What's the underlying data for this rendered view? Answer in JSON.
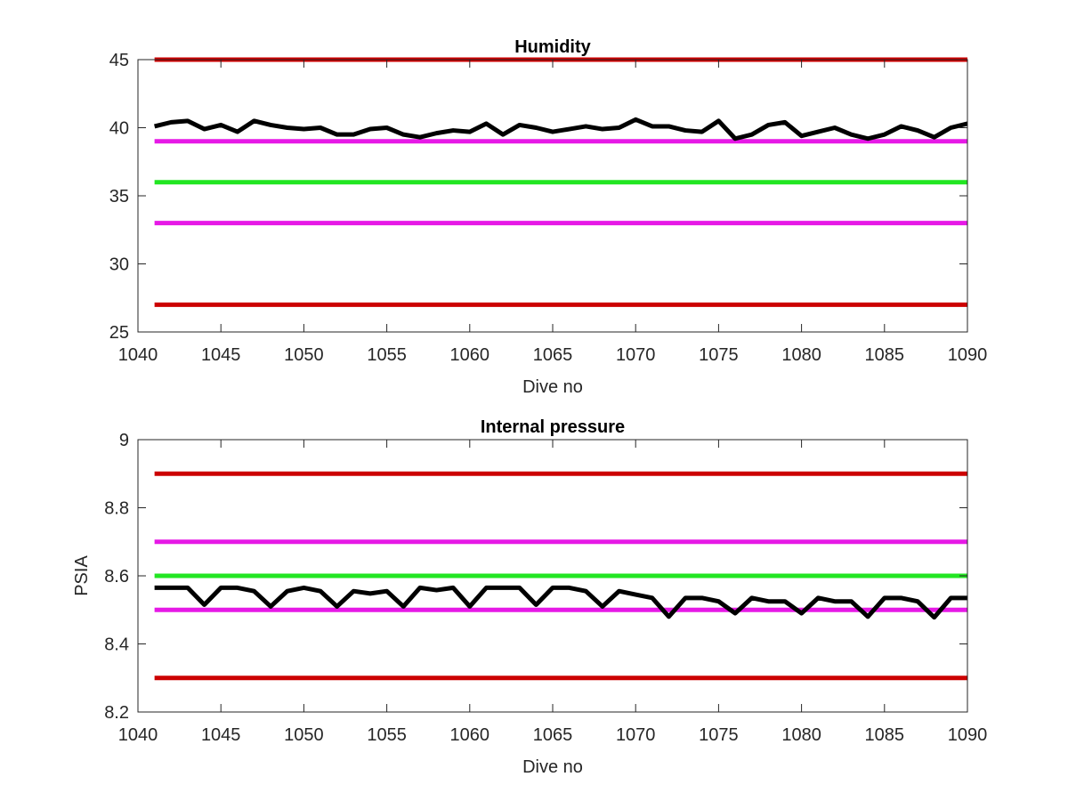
{
  "chart_data": [
    {
      "type": "line",
      "title": "Humidity",
      "xlabel": "Dive no",
      "ylabel": "",
      "xlim": [
        1040,
        1090
      ],
      "ylim": [
        25,
        45
      ],
      "xticks": [
        1040,
        1045,
        1050,
        1055,
        1060,
        1065,
        1070,
        1075,
        1080,
        1085,
        1090
      ],
      "yticks": [
        25,
        30,
        35,
        40,
        45
      ],
      "grid": false,
      "thresholds": [
        {
          "value": 45,
          "color": "#cc0000"
        },
        {
          "value": 39,
          "color": "#e619e6"
        },
        {
          "value": 36,
          "color": "#22e622"
        },
        {
          "value": 33,
          "color": "#e619e6"
        },
        {
          "value": 27,
          "color": "#cc0000"
        }
      ],
      "series": [
        {
          "color": "#000000",
          "x": [
            1041,
            1042,
            1043,
            1044,
            1045,
            1046,
            1047,
            1048,
            1049,
            1050,
            1051,
            1052,
            1053,
            1054,
            1055,
            1056,
            1057,
            1058,
            1059,
            1060,
            1061,
            1062,
            1063,
            1064,
            1065,
            1066,
            1067,
            1068,
            1069,
            1070,
            1071,
            1072,
            1073,
            1074,
            1075,
            1076,
            1077,
            1078,
            1079,
            1080,
            1081,
            1082,
            1083,
            1084,
            1085,
            1086,
            1087,
            1088,
            1089,
            1090
          ],
          "y": [
            40.1,
            40.4,
            40.5,
            39.9,
            40.2,
            39.7,
            40.5,
            40.2,
            40.0,
            39.9,
            40.0,
            39.5,
            39.5,
            39.9,
            40.0,
            39.5,
            39.3,
            39.6,
            39.8,
            39.7,
            40.3,
            39.5,
            40.2,
            40.0,
            39.7,
            39.9,
            40.1,
            39.9,
            40.0,
            40.6,
            40.1,
            40.1,
            39.8,
            39.7,
            40.5,
            39.2,
            39.5,
            40.2,
            40.4,
            39.4,
            39.7,
            40.0,
            39.5,
            39.2,
            39.5,
            40.1,
            39.8,
            39.3,
            40.0,
            40.3
          ]
        }
      ]
    },
    {
      "type": "line",
      "title": "Internal pressure",
      "xlabel": "Dive no",
      "ylabel": "PSIA",
      "xlim": [
        1040,
        1090
      ],
      "ylim": [
        8.2,
        9.0
      ],
      "xticks": [
        1040,
        1045,
        1050,
        1055,
        1060,
        1065,
        1070,
        1075,
        1080,
        1085,
        1090
      ],
      "yticks": [
        8.2,
        8.4,
        8.6,
        8.8,
        9.0
      ],
      "ytick_labels": [
        "8.2",
        "8.4",
        "8.6",
        "8.8",
        "9"
      ],
      "grid": false,
      "thresholds": [
        {
          "value": 8.9,
          "color": "#cc0000"
        },
        {
          "value": 8.7,
          "color": "#e619e6"
        },
        {
          "value": 8.6,
          "color": "#22e622"
        },
        {
          "value": 8.5,
          "color": "#e619e6"
        },
        {
          "value": 8.3,
          "color": "#cc0000"
        }
      ],
      "series": [
        {
          "color": "#000000",
          "x": [
            1041,
            1042,
            1043,
            1044,
            1045,
            1046,
            1047,
            1048,
            1049,
            1050,
            1051,
            1052,
            1053,
            1054,
            1055,
            1056,
            1057,
            1058,
            1059,
            1060,
            1061,
            1062,
            1063,
            1064,
            1065,
            1066,
            1067,
            1068,
            1069,
            1070,
            1071,
            1072,
            1073,
            1074,
            1075,
            1076,
            1077,
            1078,
            1079,
            1080,
            1081,
            1082,
            1083,
            1084,
            1085,
            1086,
            1087,
            1088,
            1089,
            1090
          ],
          "y": [
            8.565,
            8.565,
            8.565,
            8.515,
            8.565,
            8.565,
            8.555,
            8.51,
            8.555,
            8.565,
            8.555,
            8.51,
            8.555,
            8.548,
            8.555,
            8.51,
            8.565,
            8.558,
            8.565,
            8.51,
            8.565,
            8.565,
            8.565,
            8.515,
            8.565,
            8.565,
            8.555,
            8.51,
            8.555,
            8.545,
            8.535,
            8.48,
            8.535,
            8.535,
            8.525,
            8.49,
            8.535,
            8.525,
            8.525,
            8.49,
            8.535,
            8.525,
            8.525,
            8.48,
            8.535,
            8.535,
            8.525,
            8.478,
            8.535,
            8.535
          ]
        }
      ]
    }
  ]
}
